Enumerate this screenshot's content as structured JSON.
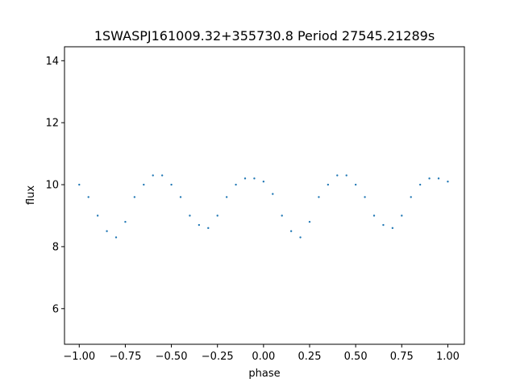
{
  "chart_data": {
    "type": "scatter",
    "title": "1SWASPJ161009.32+355730.8 Period 27545.21289s",
    "xlabel": "phase",
    "ylabel": "flux",
    "xlim": [
      -1.08,
      1.09
    ],
    "ylim": [
      4.85,
      14.45
    ],
    "x_ticks": [
      -1.0,
      -0.75,
      -0.5,
      -0.25,
      0.0,
      0.25,
      0.5,
      0.75,
      1.0
    ],
    "x_tick_labels": [
      "−1.00",
      "−0.75",
      "−0.50",
      "−0.25",
      "0.00",
      "0.25",
      "0.50",
      "0.75",
      "1.00"
    ],
    "y_ticks": [
      6,
      8,
      10,
      12,
      14
    ],
    "y_tick_labels": [
      "6",
      "8",
      "10",
      "12",
      "14"
    ],
    "grid": false,
    "legend": "none",
    "point_color": "#1f77b4",
    "series": [
      {
        "x": [
          -1.0,
          -0.95,
          -0.9,
          -0.85,
          -0.8,
          -0.75,
          -0.7,
          -0.65,
          -0.6,
          -0.55,
          -0.5,
          -0.45,
          -0.4,
          -0.35,
          -0.3,
          -0.25,
          -0.2,
          -0.15,
          -0.1,
          -0.05,
          0.0,
          0.05,
          0.1,
          0.15,
          0.2,
          0.25,
          0.3,
          0.35,
          0.4,
          0.45,
          0.5,
          0.55,
          0.6,
          0.65,
          0.7,
          0.75,
          0.8,
          0.85,
          0.9,
          0.95,
          1.0
        ],
        "y": [
          10.0,
          9.6,
          9.0,
          8.5,
          8.3,
          8.8,
          9.6,
          10.0,
          10.3,
          10.3,
          10.0,
          9.6,
          9.0,
          8.7,
          8.6,
          9.0,
          9.6,
          10.0,
          10.2,
          10.2,
          10.1,
          9.7,
          9.0,
          8.5,
          8.3,
          8.8,
          9.6,
          10.0,
          10.3,
          10.3,
          10.0,
          9.6,
          9.0,
          8.7,
          8.6,
          9.0,
          9.6,
          10.0,
          10.2,
          10.2,
          10.1
        ]
      }
    ]
  }
}
